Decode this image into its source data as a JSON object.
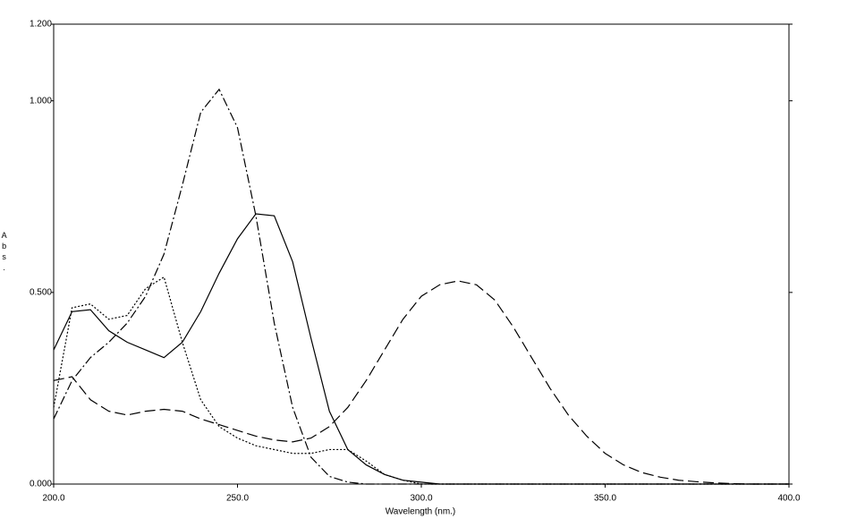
{
  "chart_data": {
    "type": "line",
    "x_label": "Wavelength (nm.)",
    "y_label": "Abs.",
    "x": [
      200,
      205,
      210,
      215,
      220,
      225,
      230,
      235,
      240,
      245,
      250,
      255,
      260,
      265,
      270,
      275,
      280,
      285,
      290,
      295,
      300,
      305,
      310,
      315,
      320,
      325,
      330,
      335,
      340,
      345,
      350,
      355,
      360,
      365,
      370,
      375,
      380,
      385,
      390,
      395,
      400
    ],
    "series": [
      {
        "color": "#000000",
        "dash": "none",
        "values": [
          0.35,
          0.45,
          0.455,
          0.4,
          0.37,
          0.35,
          0.33,
          0.37,
          0.45,
          0.55,
          0.64,
          0.705,
          0.7,
          0.58,
          0.38,
          0.19,
          0.09,
          0.05,
          0.025,
          0.01,
          0.005,
          0,
          0,
          0,
          0,
          0,
          0,
          0,
          0,
          0,
          0,
          0,
          0,
          0,
          0,
          0,
          0,
          0,
          0,
          0,
          0
        ]
      },
      {
        "color": "#000000",
        "dash": "10 3 2 3",
        "values": [
          0.17,
          0.27,
          0.33,
          0.37,
          0.42,
          0.49,
          0.6,
          0.78,
          0.97,
          1.03,
          0.93,
          0.7,
          0.42,
          0.2,
          0.07,
          0.02,
          0.005,
          0,
          0,
          0,
          0,
          0,
          0,
          0,
          0,
          0,
          0,
          0,
          0,
          0,
          0,
          0,
          0,
          0,
          0,
          0,
          0,
          0,
          0,
          0,
          0
        ]
      },
      {
        "color": "#000000",
        "dash": "2 2",
        "values": [
          0.2,
          0.46,
          0.47,
          0.43,
          0.44,
          0.51,
          0.54,
          0.37,
          0.22,
          0.15,
          0.12,
          0.1,
          0.09,
          0.08,
          0.08,
          0.09,
          0.09,
          0.06,
          0.025,
          0.01,
          0,
          0,
          0,
          0,
          0,
          0,
          0,
          0,
          0,
          0,
          0,
          0,
          0,
          0,
          0,
          0,
          0,
          0,
          0,
          0,
          0
        ]
      },
      {
        "color": "#000000",
        "dash": "12 5",
        "values": [
          0.27,
          0.28,
          0.22,
          0.19,
          0.18,
          0.19,
          0.195,
          0.19,
          0.17,
          0.155,
          0.14,
          0.125,
          0.115,
          0.11,
          0.12,
          0.15,
          0.2,
          0.27,
          0.35,
          0.43,
          0.49,
          0.52,
          0.53,
          0.52,
          0.48,
          0.41,
          0.33,
          0.25,
          0.18,
          0.125,
          0.08,
          0.05,
          0.03,
          0.018,
          0.01,
          0.006,
          0.003,
          0.001,
          0,
          0,
          0
        ]
      }
    ],
    "xlim": [
      200,
      400
    ],
    "xticks": [
      {
        "value": 200,
        "label": "200.0"
      },
      {
        "value": 250,
        "label": "250.0"
      },
      {
        "value": 300,
        "label": "300.0"
      },
      {
        "value": 350,
        "label": "350.0"
      },
      {
        "value": 400,
        "label": "400.0"
      }
    ],
    "ylim": [
      0,
      1.2
    ],
    "yticks": [
      {
        "value": 0,
        "label": "0.000"
      },
      {
        "value": 0.5,
        "label": "0.500"
      },
      {
        "value": 1,
        "label": "1.000"
      },
      {
        "value": 1.2,
        "label": "1.200"
      }
    ],
    "grid": false
  }
}
